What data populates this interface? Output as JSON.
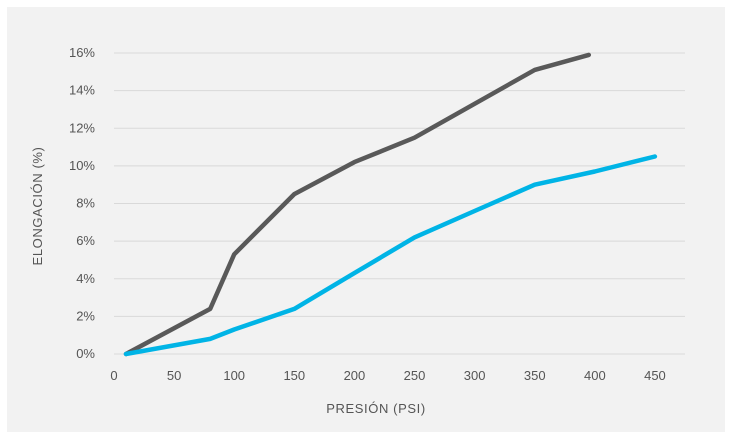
{
  "chart_data": {
    "type": "line",
    "title": "",
    "xlabel": "PRESIÓN (PSI)",
    "ylabel": "ELONGACIÓN (%)",
    "xlim": [
      0,
      475
    ],
    "ylim": [
      0,
      16
    ],
    "grid": "horizontal",
    "legend": "none",
    "x_ticks": [
      0,
      50,
      100,
      150,
      200,
      250,
      300,
      350,
      400,
      450
    ],
    "x_tick_labels": [
      "0",
      "50",
      "100",
      "150",
      "200",
      "250",
      "300",
      "350",
      "400",
      "450"
    ],
    "y_ticks": [
      0,
      2,
      4,
      6,
      8,
      10,
      12,
      14,
      16
    ],
    "y_tick_labels": [
      "0%",
      "2%",
      "4%",
      "6%",
      "8%",
      "10%",
      "12%",
      "14%",
      "16%"
    ],
    "series": [
      {
        "color": "#595959",
        "points": [
          [
            10,
            0
          ],
          [
            80,
            2.4
          ],
          [
            100,
            5.3
          ],
          [
            150,
            8.5
          ],
          [
            200,
            10.2
          ],
          [
            250,
            11.5
          ],
          [
            300,
            13.3
          ],
          [
            350,
            15.1
          ],
          [
            395,
            15.9
          ]
        ]
      },
      {
        "color": "#00b4e6",
        "points": [
          [
            10,
            0
          ],
          [
            80,
            0.8
          ],
          [
            100,
            1.3
          ],
          [
            150,
            2.4
          ],
          [
            200,
            4.3
          ],
          [
            250,
            6.2
          ],
          [
            300,
            7.6
          ],
          [
            350,
            9.0
          ],
          [
            400,
            9.7
          ],
          [
            450,
            10.5
          ]
        ]
      }
    ]
  },
  "colors": {
    "background": "#f2f2f2",
    "grid": "#d9d9d9",
    "text": "#555555"
  }
}
